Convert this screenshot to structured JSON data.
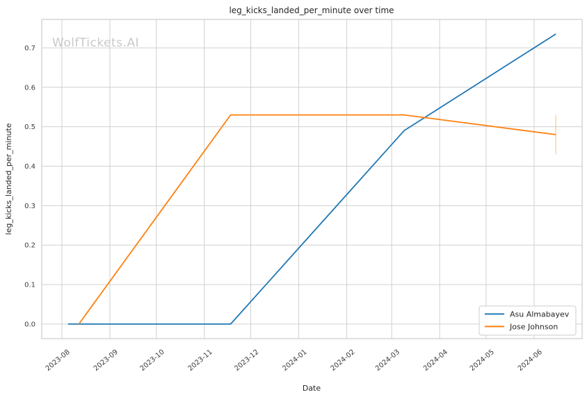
{
  "watermark": "WolfTickets.AI",
  "chart_data": {
    "type": "line",
    "title": "leg_kicks_landed_per_minute over time",
    "xlabel": "Date",
    "ylabel": "leg_kicks_landed_per_minute",
    "grid": true,
    "legend_position": "lower right",
    "xlim": [
      "2023-07-19",
      "2024-07-02"
    ],
    "ylim": [
      -0.037,
      0.772
    ],
    "x_ticks": [
      {
        "date": "2023-08-01",
        "label": "2023-08"
      },
      {
        "date": "2023-09-01",
        "label": "2023-09"
      },
      {
        "date": "2023-10-01",
        "label": "2023-10"
      },
      {
        "date": "2023-11-01",
        "label": "2023-11"
      },
      {
        "date": "2023-12-01",
        "label": "2023-12"
      },
      {
        "date": "2024-01-01",
        "label": "2024-01"
      },
      {
        "date": "2024-02-01",
        "label": "2024-02"
      },
      {
        "date": "2024-03-01",
        "label": "2024-03"
      },
      {
        "date": "2024-04-01",
        "label": "2024-04"
      },
      {
        "date": "2024-05-01",
        "label": "2024-05"
      },
      {
        "date": "2024-06-01",
        "label": "2024-06"
      }
    ],
    "y_ticks": [
      {
        "value": 0.0,
        "label": "0.0"
      },
      {
        "value": 0.1,
        "label": "0.1"
      },
      {
        "value": 0.2,
        "label": "0.2"
      },
      {
        "value": 0.3,
        "label": "0.3"
      },
      {
        "value": 0.4,
        "label": "0.4"
      },
      {
        "value": 0.5,
        "label": "0.5"
      },
      {
        "value": 0.6,
        "label": "0.6"
      },
      {
        "value": 0.7,
        "label": "0.7"
      }
    ],
    "series": [
      {
        "name": "Asu Almabayev",
        "color": "#1f77b4",
        "points": [
          {
            "date": "2023-08-05",
            "value": 0.0
          },
          {
            "date": "2023-11-18",
            "value": 0.0
          },
          {
            "date": "2024-03-09",
            "value": 0.49
          },
          {
            "date": "2024-06-15",
            "value": 0.735
          }
        ]
      },
      {
        "name": "Jose Johnson",
        "color": "#ff7f0e",
        "points": [
          {
            "date": "2023-08-12",
            "value": 0.0
          },
          {
            "date": "2023-11-18",
            "value": 0.53
          },
          {
            "date": "2024-03-09",
            "value": 0.53
          },
          {
            "date": "2024-06-15",
            "value": 0.48
          }
        ],
        "error_bars": [
          {
            "date": "2024-06-15",
            "low": 0.43,
            "high": 0.53
          }
        ]
      }
    ]
  }
}
